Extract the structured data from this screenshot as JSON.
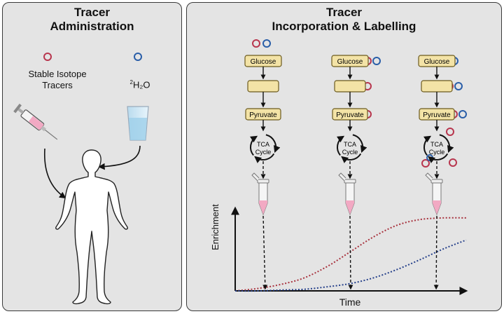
{
  "left_panel": {
    "title_line1": "Tracer",
    "title_line2": "Administration",
    "tracer_line1": "Stable Isotope",
    "tracer_line2": "Tracers",
    "water_superscript": "2",
    "water_formula": "H₂O"
  },
  "right_panel": {
    "title_line1": "Tracer",
    "title_line2": "Incorporation & Labelling",
    "glucose": "Glucose",
    "pyruvate": "Pyruvate",
    "tca_line1": "TCA",
    "tca_line2": "Cycle",
    "y_axis_label": "Enrichment",
    "x_axis_label": "Time"
  },
  "colors": {
    "stable_isotope_tracer": "#b8364e",
    "water_tracer": "#2a5ea8",
    "metabolite_box": "#f3e3a6",
    "tube_liquid": "#f2a9c3"
  },
  "chart_data": {
    "type": "line",
    "xlabel": "Time",
    "ylabel": "Enrichment",
    "series": [
      {
        "x": [
          0,
          1,
          2,
          3,
          4,
          5,
          6,
          7,
          8,
          9,
          10
        ],
        "values": [
          0.0,
          0.03,
          0.08,
          0.16,
          0.3,
          0.48,
          0.66,
          0.8,
          0.87,
          0.89,
          0.89
        ]
      },
      {
        "x": [
          0,
          1,
          2,
          3,
          4,
          5,
          6,
          7,
          8,
          9,
          10
        ],
        "values": [
          0.0,
          0.0,
          0.01,
          0.02,
          0.05,
          0.09,
          0.16,
          0.26,
          0.38,
          0.51,
          0.62
        ]
      }
    ],
    "sampling_times": [
      1.3,
      5.0,
      8.7
    ],
    "xlim": [
      0,
      10
    ],
    "ylim": [
      0,
      1
    ]
  }
}
